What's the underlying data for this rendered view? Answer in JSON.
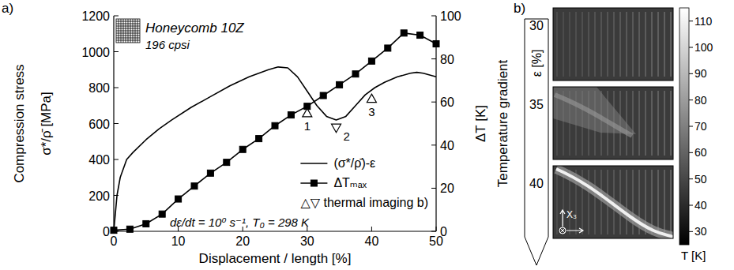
{
  "chart_data": [
    {
      "type": "line",
      "title": "a)",
      "subtitle": "Honeycomb 10Z",
      "annotations": [
        "196 cpsi",
        "dε/dt = 10⁰ s⁻¹, T₀ = 298 K"
      ],
      "x_label": "Displacement / length [%]",
      "y_label": [
        "Compression stress",
        "σ*/ρ̄ [MPa]"
      ],
      "y2_label": [
        "Temperature gradient",
        "ΔT [K]"
      ],
      "xlim": [
        0,
        50
      ],
      "xticks": [
        0,
        10,
        20,
        30,
        40,
        50
      ],
      "ylim": [
        0,
        1200
      ],
      "yticks": [
        0,
        200,
        400,
        600,
        800,
        1000,
        1200
      ],
      "y2lim": [
        0,
        100
      ],
      "y2ticks": [
        0,
        20,
        40,
        60,
        80,
        100
      ],
      "grid": false,
      "legend": "lower-right",
      "series": [
        {
          "name": "(σ*/ρ̄)-ε",
          "type": "line",
          "color": "#000000",
          "line_style": "solid",
          "marker": "none",
          "x": [
            0,
            0.5,
            1,
            2,
            3,
            5,
            7,
            9,
            12,
            15,
            18,
            21,
            24,
            25.5,
            27,
            28.5,
            30,
            31.5,
            33,
            34.5,
            36,
            37.5,
            39,
            40.5,
            42,
            44,
            46,
            47,
            48,
            49,
            50
          ],
          "values": [
            0,
            200,
            300,
            400,
            440,
            510,
            570,
            620,
            690,
            750,
            810,
            860,
            900,
            915,
            910,
            860,
            780,
            700,
            640,
            620,
            640,
            700,
            760,
            800,
            830,
            860,
            880,
            885,
            880,
            870,
            860
          ]
        },
        {
          "name": "ΔTₘₐₓ",
          "type": "line",
          "axis": "y2",
          "color": "#000000",
          "line_style": "solid",
          "marker": "square",
          "x": [
            0,
            2.5,
            5,
            7.5,
            10,
            12.5,
            15,
            17.5,
            20,
            22.5,
            25,
            27.5,
            30,
            32.5,
            35,
            37.5,
            40,
            42.5,
            45,
            47.5,
            50
          ],
          "values": [
            0.5,
            1,
            3.5,
            8,
            15,
            21,
            27,
            32,
            38,
            43,
            49,
            54,
            58,
            63,
            68,
            73,
            79,
            85,
            92,
            91,
            87
          ]
        },
        {
          "name": "△▽ thermal imaging b)",
          "type": "scatter",
          "color": "#000000",
          "marker": "triangle-up",
          "x": [
            30,
            40
          ],
          "values": [
            660,
            740
          ],
          "labels": [
            "1",
            "3"
          ]
        },
        {
          "type": "scatter",
          "color": "#000000",
          "marker": "triangle-down",
          "x": [
            34.5
          ],
          "values": [
            575
          ],
          "labels": [
            "2"
          ]
        }
      ]
    },
    {
      "type": "thermal_images",
      "title": "b)",
      "y_label": "ε [%]",
      "frames": [
        30,
        35,
        40
      ],
      "axis_label": "X₃",
      "colorbar": {
        "label": "T [K]",
        "range": [
          25,
          115
        ],
        "ticks": [
          30,
          40,
          50,
          60,
          70,
          80,
          90,
          100,
          110
        ]
      }
    }
  ]
}
